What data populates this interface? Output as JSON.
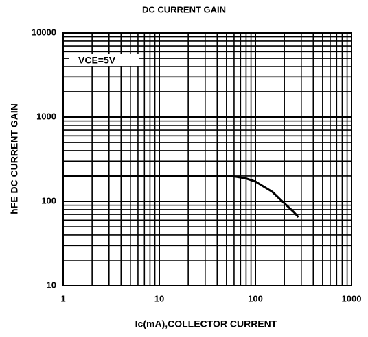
{
  "chart_data": {
    "type": "line",
    "title": "DC CURRENT GAIN",
    "xlabel": "Ic(mA),COLLECTOR CURRENT",
    "ylabel": "hFE DC CURRENT GAIN",
    "annotation": "VCE=5V",
    "x": [
      1,
      10,
      40,
      60,
      80,
      100,
      150,
      200,
      250,
      280
    ],
    "series": [
      {
        "name": "hFE",
        "color": "#000000",
        "values": [
          200,
          200,
          200,
          198,
          187,
          172,
          130,
          95,
          75,
          65
        ]
      }
    ],
    "xlim": [
      1,
      1000
    ],
    "ylim": [
      10,
      10000
    ],
    "xticks": [
      1,
      10,
      100,
      1000
    ],
    "yticks": [
      10,
      100,
      1000,
      10000
    ],
    "xscale": "log",
    "yscale": "log",
    "grid": true
  }
}
